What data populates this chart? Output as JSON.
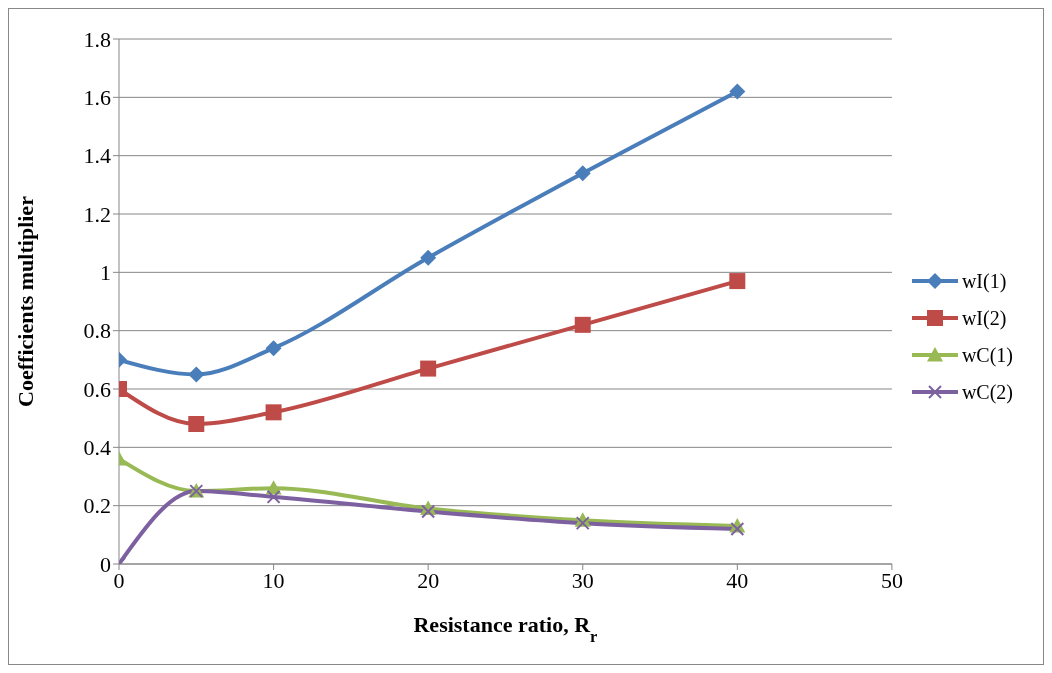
{
  "chart_data": {
    "type": "line",
    "xlabel": "Resistance ratio, R$_{r}$",
    "ylabel": "Coefficients multiplier",
    "x": [
      0,
      5,
      10,
      20,
      30,
      40
    ],
    "series": [
      {
        "name": "wI(1)",
        "color": "#4a7ebb",
        "marker": "diamond",
        "values": [
          0.7,
          0.65,
          0.74,
          1.05,
          1.34,
          1.62
        ]
      },
      {
        "name": "wI(2)",
        "color": "#be4b48",
        "marker": "square",
        "values": [
          0.6,
          0.48,
          0.52,
          0.67,
          0.82,
          0.97
        ]
      },
      {
        "name": "wC(1)",
        "color": "#98b954",
        "marker": "triangle",
        "values": [
          0.36,
          0.25,
          0.26,
          0.19,
          0.15,
          0.13
        ]
      },
      {
        "name": "wC(2)",
        "color": "#7d60a0",
        "marker": "cross",
        "values": [
          0,
          0.25,
          0.23,
          0.18,
          0.14,
          0.12
        ]
      }
    ],
    "xlim": [
      0,
      50
    ],
    "xticks": [
      0,
      10,
      20,
      30,
      40,
      50
    ],
    "ylim": [
      0,
      1.8
    ],
    "yticks": [
      0,
      0.2,
      0.4,
      0.6,
      0.8,
      1,
      1.2,
      1.4,
      1.6,
      1.8
    ],
    "grid": "y",
    "legend": "right",
    "line_style": "solid"
  }
}
